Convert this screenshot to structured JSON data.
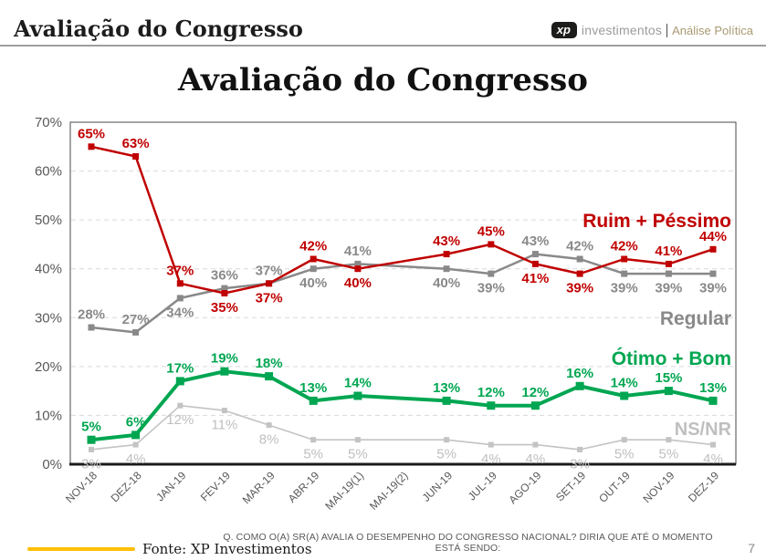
{
  "header": {
    "title": "Avaliação do Congresso",
    "logo": {
      "badge": "xp",
      "brand": "investimentos",
      "division": "Análise Política"
    }
  },
  "chart_data": {
    "type": "line",
    "title": "Avaliação do Congresso",
    "categories": [
      "NOV-18",
      "DEZ-18",
      "JAN-19",
      "FEV-19",
      "MAR-19",
      "ABR-19",
      "MAI-19(1)",
      "MAI-19(2)",
      "JUN-19",
      "JUL-19",
      "AGO-19",
      "SET-19",
      "OUT-19",
      "NOV-19",
      "DEZ-19"
    ],
    "ylim": [
      0,
      70
    ],
    "ytick_step": 10,
    "ytick_suffix": "%",
    "grid": "horizontal-dashed",
    "legend_position": "right-inline",
    "series": [
      {
        "id": "ruim-pessimo",
        "name": "Ruim + Péssimo",
        "color": "#C00000",
        "values": [
          65,
          63,
          37,
          35,
          37,
          42,
          40,
          null,
          43,
          45,
          41,
          39,
          42,
          41,
          44
        ],
        "label_pos": [
          "a",
          "a",
          "a",
          "b",
          "b",
          "a",
          "b",
          null,
          "a",
          "a",
          "b",
          "b",
          "a",
          "a",
          "a"
        ],
        "label_weight": "bold",
        "line_width": 2.5,
        "marker_size": 7
      },
      {
        "id": "regular",
        "name": "Regular",
        "color": "#898989",
        "values": [
          28,
          27,
          34,
          36,
          37,
          40,
          41,
          null,
          40,
          39,
          43,
          42,
          39,
          39,
          39
        ],
        "label_pos": [
          "a",
          "a",
          "b",
          "a",
          "a",
          "b",
          "a",
          null,
          "b",
          "b",
          "a",
          "a",
          "b",
          "b",
          "b"
        ],
        "label_weight": "bold",
        "line_width": 2.5,
        "marker_size": 7
      },
      {
        "id": "otimo-bom",
        "name": "Ótimo + Bom",
        "color": "#00A651",
        "values": [
          5,
          6,
          17,
          19,
          18,
          13,
          14,
          null,
          13,
          12,
          12,
          16,
          14,
          15,
          13
        ],
        "label_pos": [
          "a",
          "a",
          "a",
          "a",
          "a",
          "a",
          "a",
          null,
          "a",
          "a",
          "a",
          "a",
          "a",
          "a",
          "a"
        ],
        "label_weight": "bold",
        "line_width": 4,
        "marker_size": 9
      },
      {
        "id": "ns-nr",
        "name": "NS/NR",
        "color": "#C3C3C3",
        "label_color": "#BFBFBF",
        "values": [
          3,
          4,
          12,
          11,
          8,
          5,
          5,
          null,
          5,
          4,
          4,
          3,
          5,
          5,
          4
        ],
        "label_pos": [
          "b",
          "b",
          "b",
          "b",
          "b",
          "b",
          "b",
          null,
          "b",
          "b",
          "b",
          "b",
          "b",
          "b",
          "b"
        ],
        "label_weight": "normal",
        "line_width": 1.6,
        "marker_size": 6
      }
    ]
  },
  "footer": {
    "accent_color": "#FFC000",
    "source": "Fonte: XP Investimentos",
    "question": "Q. COMO O(A) SR(A) AVALIA O DESEMPENHO DO CONGRESSO NACIONAL? DIRIA QUE ATÉ O MOMENTO ESTÁ SENDO:",
    "page": "7"
  }
}
